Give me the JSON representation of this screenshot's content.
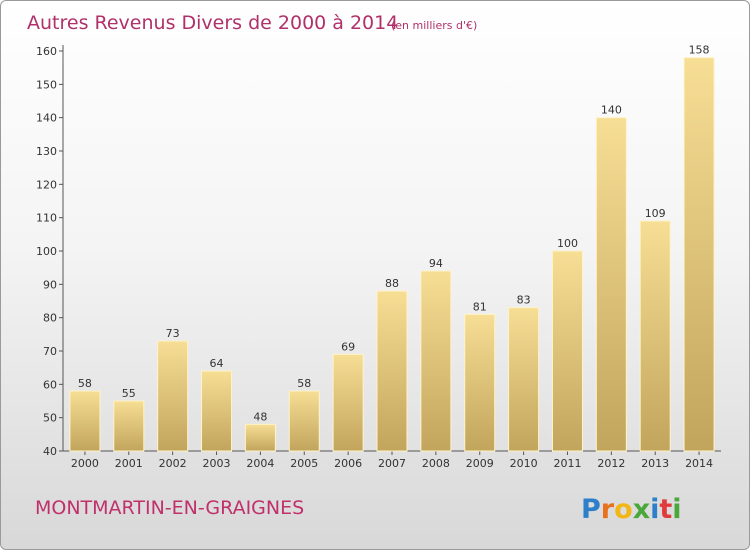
{
  "chart_data": {
    "type": "bar",
    "title": "Autres Revenus Divers de 2000 à 2014",
    "unit": "(en milliers d'€)",
    "categories": [
      "2000",
      "2001",
      "2002",
      "2003",
      "2004",
      "2005",
      "2006",
      "2007",
      "2008",
      "2009",
      "2010",
      "2011",
      "2012",
      "2013",
      "2014"
    ],
    "values": [
      58,
      55,
      73,
      64,
      48,
      58,
      69,
      88,
      94,
      81,
      83,
      100,
      140,
      109,
      158
    ],
    "ylim": [
      40,
      160
    ],
    "yticks": [
      40,
      50,
      60,
      70,
      80,
      90,
      100,
      110,
      120,
      130,
      140,
      150,
      160
    ],
    "grid": false,
    "bar_color": "#e8c97a",
    "title_color": "#b0306a"
  },
  "footer": {
    "commune": "MONTMARTIN-EN-GRAIGNES",
    "logo_letters": [
      "P",
      "r",
      "o",
      "x",
      "i",
      "t",
      "i"
    ],
    "logo_colors": [
      "#2e7fc9",
      "#e8711d",
      "#f2b616",
      "#4aa83b",
      "#2e7fc9",
      "#e03c3c",
      "#4aa83b"
    ]
  }
}
